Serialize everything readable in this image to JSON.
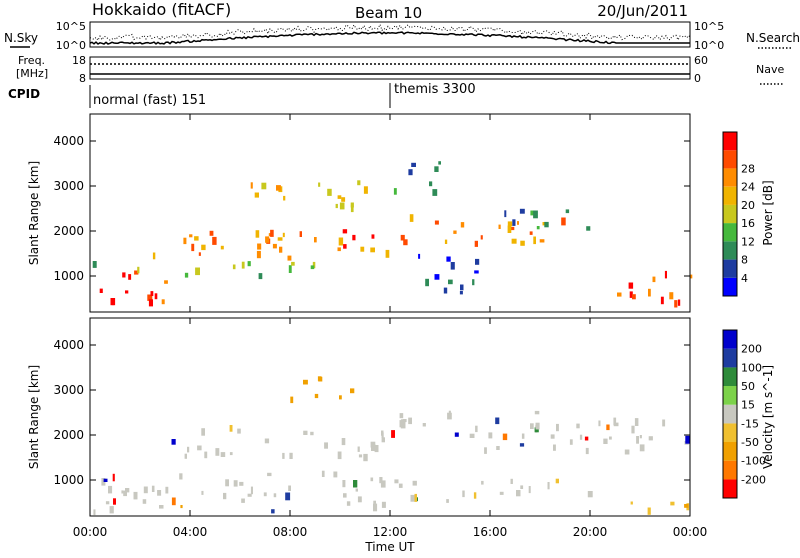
{
  "header": {
    "station": "Hokkaido (fitACF)",
    "beam": "Beam 10",
    "date": "20/Jun/2011"
  },
  "noise_panel": {
    "left_label": "N.Sky",
    "right_label": "N.Search",
    "tick_top": "10^5",
    "tick_bottom": "10^0"
  },
  "freq_panel": {
    "left_label_1": "Freq.",
    "left_label_2": "[MHz]",
    "tick_left_top": "18",
    "tick_left_bottom": "8",
    "right_label": "Nave",
    "tick_right_top": "60",
    "tick_right_bottom": "0"
  },
  "cpid_panel": {
    "label": "CPID",
    "mode_1": "normal (fast) 151",
    "mode_2": "themis 3300"
  },
  "time_axis": {
    "label": "Time UT",
    "ticks": [
      "00:00",
      "04:00",
      "08:00",
      "12:00",
      "16:00",
      "20:00",
      "00:00"
    ]
  },
  "colors": {
    "power": [
      "#0000ff",
      "#1e3ca0",
      "#2e8b57",
      "#45b83c",
      "#c8c81e",
      "#f0b400",
      "#ff8c00",
      "#ff4a00",
      "#ff0000"
    ],
    "velocity": [
      "#ff0000",
      "#ff7800",
      "#f0a000",
      "#f0c030",
      "#c8c8c0",
      "#7cd24a",
      "#2e8b3a",
      "#1e3ca0",
      "#0000cc"
    ]
  },
  "chart_data": [
    {
      "type": "heatmap",
      "name": "power",
      "x": "time UT (hours)",
      "xlim": [
        0,
        24
      ],
      "ylabel": "Slant Range [km]",
      "ylim": [
        200,
        4600
      ],
      "yticks": [
        "1000",
        "2000",
        "3000",
        "4000"
      ],
      "colorbar_label": "Power [dB]",
      "colorbar_ticks": [
        "4",
        "8",
        "12",
        "16",
        "20",
        "24",
        "28"
      ],
      "bands": [
        {
          "t0": 0,
          "t1": 3.5,
          "r0": 300,
          "r1": 1100,
          "level": 7
        },
        {
          "t0": 1.5,
          "t1": 12,
          "r0": 1400,
          "r1": 2000,
          "level": 6
        },
        {
          "t0": 6,
          "t1": 11,
          "r0": 2400,
          "r1": 3100,
          "level": 5
        },
        {
          "t0": 10,
          "t1": 12.5,
          "r0": 1600,
          "r1": 2000,
          "level": 7
        },
        {
          "t0": 12.5,
          "t1": 19,
          "r0": 1700,
          "r1": 2400,
          "level": 6
        },
        {
          "t0": 16,
          "t1": 20,
          "r0": 2000,
          "r1": 2500,
          "level": 2
        },
        {
          "t0": 13,
          "t1": 16,
          "r0": 600,
          "r1": 1500,
          "level": 1
        },
        {
          "t0": 21,
          "t1": 24,
          "r0": 300,
          "r1": 1200,
          "level": 7
        },
        {
          "t0": 0,
          "t1": 9,
          "r0": 1000,
          "r1": 1300,
          "level": 3
        },
        {
          "t0": 12,
          "t1": 14,
          "r0": 2800,
          "r1": 3600,
          "level": 2
        }
      ]
    },
    {
      "type": "heatmap",
      "name": "velocity",
      "x": "time UT (hours)",
      "xlim": [
        0,
        24
      ],
      "ylabel": "Slant Range [km]",
      "ylim": [
        200,
        4600
      ],
      "yticks": [
        "1000",
        "2000",
        "3000",
        "4000"
      ],
      "colorbar_label": "Velocity [m s^-1]",
      "colorbar_ticks": [
        "200",
        "100",
        "50",
        "15",
        "-15",
        "-50",
        "-100",
        "-200"
      ],
      "bands": [
        {
          "t0": 0,
          "t1": 12,
          "r0": 300,
          "r1": 1200,
          "level": 4
        },
        {
          "t0": 3,
          "t1": 12,
          "r0": 1500,
          "r1": 2200,
          "level": 4
        },
        {
          "t0": 12,
          "t1": 24,
          "r0": 1600,
          "r1": 2500,
          "level": 4
        },
        {
          "t0": 8,
          "t1": 11,
          "r0": 2800,
          "r1": 3300,
          "level": 2
        },
        {
          "t0": 21,
          "t1": 24,
          "r0": 300,
          "r1": 700,
          "level": 3
        },
        {
          "t0": 12,
          "t1": 20,
          "r0": 500,
          "r1": 1000,
          "level": 4
        }
      ]
    }
  ]
}
